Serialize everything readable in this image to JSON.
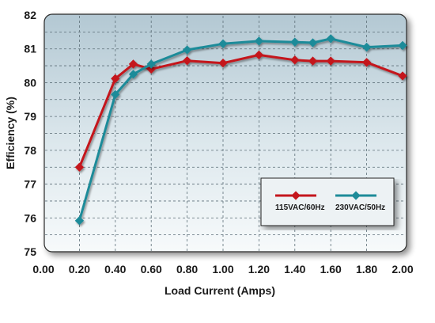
{
  "chart_data": {
    "type": "line",
    "xlabel": "Load Current (Amps)",
    "ylabel": "Efficiency (%)",
    "xlim": [
      0.0,
      2.0
    ],
    "ylim": [
      75,
      82
    ],
    "x_ticks": [
      "0.00",
      "0.20",
      "0.40",
      "0.60",
      "0.80",
      "1.00",
      "1.20",
      "1.40",
      "1.60",
      "1.80",
      "2.00"
    ],
    "y_ticks": [
      "75",
      "76",
      "77",
      "78",
      "79",
      "80",
      "81",
      "82"
    ],
    "grid": true,
    "legend_position": "bottom-right",
    "series": [
      {
        "name": "115VAC/60Hz",
        "color": "#c4161c",
        "points": [
          [
            0.2,
            77.5
          ],
          [
            0.4,
            80.12
          ],
          [
            0.5,
            80.55
          ],
          [
            0.6,
            80.4
          ],
          [
            0.8,
            80.65
          ],
          [
            1.0,
            80.58
          ],
          [
            1.2,
            80.82
          ],
          [
            1.4,
            80.67
          ],
          [
            1.5,
            80.64
          ],
          [
            1.6,
            80.64
          ],
          [
            1.8,
            80.6
          ],
          [
            2.0,
            80.2
          ]
        ]
      },
      {
        "name": "230VAC/50Hz",
        "color": "#1d8b99",
        "points": [
          [
            0.2,
            75.92
          ],
          [
            0.4,
            79.65
          ],
          [
            0.5,
            80.25
          ],
          [
            0.6,
            80.55
          ],
          [
            0.8,
            80.97
          ],
          [
            1.0,
            81.15
          ],
          [
            1.2,
            81.23
          ],
          [
            1.4,
            81.2
          ],
          [
            1.5,
            81.18
          ],
          [
            1.6,
            81.3
          ],
          [
            1.8,
            81.05
          ],
          [
            2.0,
            81.1
          ]
        ]
      }
    ]
  }
}
